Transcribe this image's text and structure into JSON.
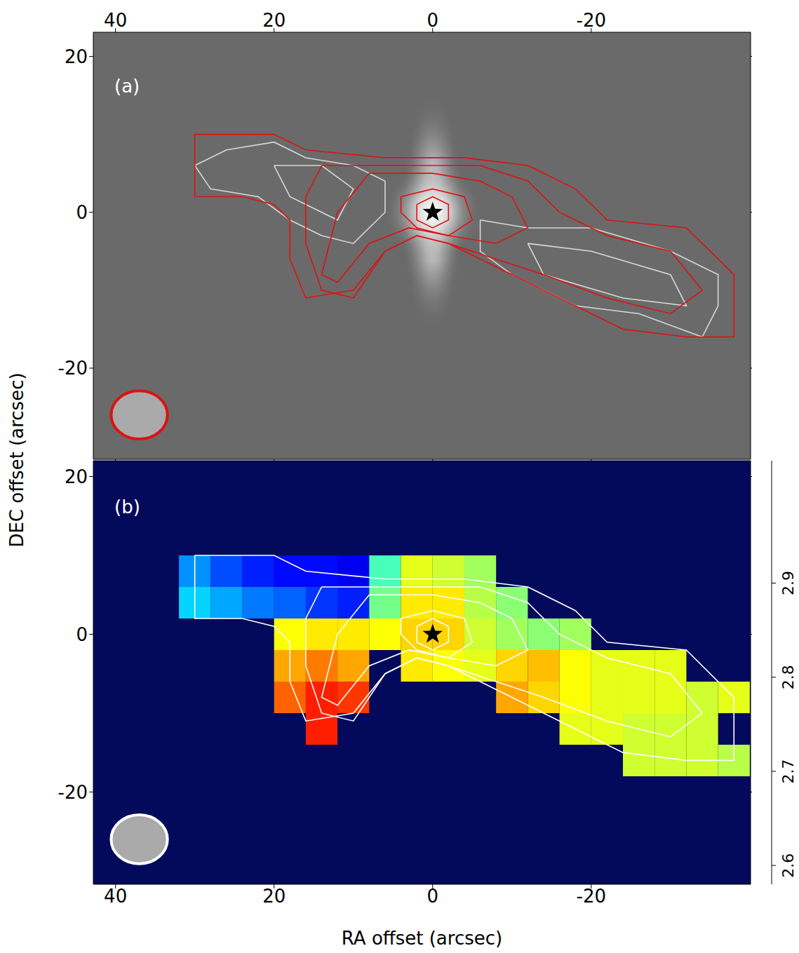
{
  "chart_data": [
    {
      "type": "contour",
      "title": "(a)",
      "ylabel": "DEC offset (arcsec)",
      "xlim": [
        42.8,
        -40.1
      ],
      "xticks": [
        40,
        20,
        0,
        -20
      ],
      "ylim": [
        -31.7,
        23.1
      ],
      "yticks": [
        -20,
        0,
        20
      ],
      "grid": false,
      "star": {
        "x": 0,
        "y": 0
      },
      "beam": {
        "x": 37,
        "y": -26,
        "width": 7.1,
        "height": 6.2,
        "color": "#e01010"
      },
      "contours": [
        {
          "color": "#d8d8d8",
          "levels": [
            [
              [
                30,
                6
              ],
              [
                26,
                8
              ],
              [
                20,
                9
              ],
              [
                16,
                7
              ],
              [
                10,
                6
              ],
              [
                6,
                4
              ],
              [
                6,
                0
              ],
              [
                10,
                -4
              ],
              [
                14,
                -3
              ],
              [
                18,
                -1
              ],
              [
                22,
                2
              ],
              [
                28,
                3
              ],
              [
                30,
                6
              ]
            ],
            [
              [
                20,
                6
              ],
              [
                14,
                6
              ],
              [
                10,
                3
              ],
              [
                12,
                -1
              ],
              [
                18,
                2
              ],
              [
                20,
                6
              ]
            ],
            [
              [
                -6,
                -1
              ],
              [
                -12,
                -2
              ],
              [
                -20,
                -2
              ],
              [
                -30,
                -5
              ],
              [
                -36,
                -8
              ],
              [
                -36,
                -12
              ],
              [
                -34,
                -16
              ],
              [
                -26,
                -13
              ],
              [
                -18,
                -12
              ],
              [
                -10,
                -8
              ],
              [
                -6,
                -5
              ],
              [
                -6,
                -1
              ]
            ],
            [
              [
                -12,
                -4
              ],
              [
                -20,
                -5
              ],
              [
                -30,
                -8
              ],
              [
                -32,
                -12
              ],
              [
                -24,
                -11
              ],
              [
                -14,
                -8
              ],
              [
                -12,
                -4
              ]
            ]
          ]
        },
        {
          "color": "#e01010",
          "levels": [
            [
              [
                30,
                10
              ],
              [
                20,
                10
              ],
              [
                16,
                8
              ],
              [
                6,
                7
              ],
              [
                -4,
                7
              ],
              [
                -12,
                6
              ],
              [
                -18,
                3
              ],
              [
                -22,
                -1
              ],
              [
                -32,
                -2
              ],
              [
                -38,
                -8
              ],
              [
                -38,
                -16
              ],
              [
                -32,
                -16
              ],
              [
                -24,
                -15
              ],
              [
                -14,
                -10
              ],
              [
                -8,
                -7
              ],
              [
                -2,
                -4
              ],
              [
                2,
                -3
              ],
              [
                6,
                -5
              ],
              [
                10,
                -10
              ],
              [
                16,
                -11
              ],
              [
                18,
                -6
              ],
              [
                18,
                -1
              ],
              [
                20,
                1
              ],
              [
                24,
                2
              ],
              [
                30,
                2
              ],
              [
                30,
                10
              ]
            ],
            [
              [
                14,
                6
              ],
              [
                4,
                6
              ],
              [
                -6,
                6
              ],
              [
                -12,
                4
              ],
              [
                -16,
                0
              ],
              [
                -22,
                -3
              ],
              [
                -30,
                -5
              ],
              [
                -34,
                -10
              ],
              [
                -30,
                -13
              ],
              [
                -22,
                -11
              ],
              [
                -14,
                -8
              ],
              [
                -8,
                -6
              ],
              [
                -2,
                -4
              ],
              [
                2,
                -3
              ],
              [
                6,
                -5
              ],
              [
                10,
                -11
              ],
              [
                14,
                -10
              ],
              [
                16,
                -4
              ],
              [
                16,
                2
              ],
              [
                14,
                6
              ]
            ],
            [
              [
                8,
                5
              ],
              [
                0,
                5
              ],
              [
                -6,
                4
              ],
              [
                -10,
                2
              ],
              [
                -12,
                -2
              ],
              [
                -8,
                -4
              ],
              [
                -2,
                -3
              ],
              [
                3,
                -2
              ],
              [
                8,
                -4
              ],
              [
                12,
                -9
              ],
              [
                14,
                -8
              ],
              [
                12,
                0
              ],
              [
                8,
                5
              ]
            ],
            [
              [
                4,
                2
              ],
              [
                0,
                3
              ],
              [
                -4,
                2
              ],
              [
                -5,
                -1
              ],
              [
                -2,
                -3
              ],
              [
                2,
                -2
              ],
              [
                4,
                0
              ],
              [
                4,
                2
              ]
            ],
            [
              [
                2,
                1
              ],
              [
                0,
                2
              ],
              [
                -2,
                1
              ],
              [
                -2,
                -1
              ],
              [
                0,
                -2
              ],
              [
                2,
                -1
              ],
              [
                2,
                1
              ]
            ]
          ]
        }
      ]
    },
    {
      "type": "heatmap",
      "title": "(b)",
      "xlabel": "RA offset (arcsec)",
      "xlim": [
        42.8,
        -40.1
      ],
      "xticks": [
        40,
        20,
        0,
        -20
      ],
      "ylim": [
        -31.7,
        22
      ],
      "yticks": [
        -20,
        0,
        20
      ],
      "grid": false,
      "star": {
        "x": 0,
        "y": 0
      },
      "beam": {
        "x": 37,
        "y": -26,
        "width": 7.1,
        "height": 6.2,
        "color": "#ffffff"
      },
      "heatmap": {
        "x": [
          30,
          26,
          22,
          18,
          14,
          10,
          6,
          2,
          -2,
          -6,
          -10,
          -14,
          -18,
          -22,
          -26,
          -30,
          -34,
          -38
        ],
        "y": [
          8,
          4,
          0,
          -4,
          -8,
          -12,
          -16
        ],
        "z": [
          [
            2.7,
            2.67,
            2.65,
            2.64,
            2.64,
            2.63,
            2.78,
            2.85,
            2.84,
            2.82,
            null,
            null,
            null,
            null,
            null,
            null,
            null,
            null
          ],
          [
            2.73,
            2.71,
            2.69,
            2.68,
            2.66,
            2.65,
            2.8,
            2.87,
            2.87,
            2.83,
            2.81,
            null,
            null,
            null,
            null,
            null,
            null,
            null
          ],
          [
            null,
            null,
            null,
            2.86,
            2.87,
            2.87,
            2.86,
            2.88,
            2.88,
            2.84,
            2.82,
            2.81,
            2.82,
            null,
            null,
            null,
            null,
            null
          ],
          [
            null,
            null,
            null,
            2.9,
            2.92,
            2.9,
            null,
            2.87,
            2.86,
            2.85,
            2.88,
            2.89,
            2.86,
            2.85,
            2.85,
            2.85,
            null,
            null
          ],
          [
            null,
            null,
            null,
            2.93,
            2.96,
            2.95,
            null,
            null,
            null,
            null,
            2.9,
            2.88,
            2.86,
            2.85,
            2.85,
            2.85,
            2.84,
            2.85
          ],
          [
            null,
            null,
            null,
            null,
            2.96,
            null,
            null,
            null,
            null,
            null,
            null,
            null,
            2.85,
            2.85,
            2.84,
            2.84,
            2.84,
            null
          ],
          [
            null,
            null,
            null,
            null,
            null,
            null,
            null,
            null,
            null,
            null,
            null,
            null,
            null,
            null,
            2.84,
            2.84,
            2.84,
            2.83
          ]
        ]
      },
      "colorbar": {
        "range": [
          2.58,
          3.03
        ],
        "ticks": [
          2.6,
          2.7,
          2.8,
          2.9
        ]
      },
      "contours": [
        {
          "color": "#ffffff",
          "levels": [
            [
              [
                30,
                10
              ],
              [
                20,
                10
              ],
              [
                16,
                8
              ],
              [
                6,
                7
              ],
              [
                -4,
                7
              ],
              [
                -12,
                6
              ],
              [
                -18,
                3
              ],
              [
                -22,
                -1
              ],
              [
                -32,
                -2
              ],
              [
                -38,
                -8
              ],
              [
                -38,
                -16
              ],
              [
                -32,
                -16
              ],
              [
                -24,
                -15
              ],
              [
                -14,
                -10
              ],
              [
                -8,
                -7
              ],
              [
                -2,
                -4
              ],
              [
                2,
                -3
              ],
              [
                6,
                -5
              ],
              [
                10,
                -10
              ],
              [
                16,
                -11
              ],
              [
                18,
                -6
              ],
              [
                18,
                -1
              ],
              [
                20,
                1
              ],
              [
                24,
                2
              ],
              [
                30,
                2
              ],
              [
                30,
                10
              ]
            ],
            [
              [
                14,
                6
              ],
              [
                4,
                6
              ],
              [
                -6,
                6
              ],
              [
                -12,
                4
              ],
              [
                -16,
                0
              ],
              [
                -22,
                -3
              ],
              [
                -30,
                -5
              ],
              [
                -34,
                -10
              ],
              [
                -30,
                -13
              ],
              [
                -22,
                -11
              ],
              [
                -14,
                -8
              ],
              [
                -8,
                -6
              ],
              [
                -2,
                -4
              ],
              [
                2,
                -3
              ],
              [
                6,
                -5
              ],
              [
                10,
                -11
              ],
              [
                14,
                -10
              ],
              [
                16,
                -4
              ],
              [
                16,
                2
              ],
              [
                14,
                6
              ]
            ],
            [
              [
                8,
                5
              ],
              [
                0,
                5
              ],
              [
                -6,
                4
              ],
              [
                -10,
                2
              ],
              [
                -12,
                -2
              ],
              [
                -8,
                -4
              ],
              [
                -2,
                -3
              ],
              [
                3,
                -2
              ],
              [
                8,
                -4
              ],
              [
                12,
                -9
              ],
              [
                14,
                -8
              ],
              [
                12,
                0
              ],
              [
                8,
                5
              ]
            ],
            [
              [
                4,
                2
              ],
              [
                0,
                3
              ],
              [
                -4,
                2
              ],
              [
                -5,
                -1
              ],
              [
                -2,
                -3
              ],
              [
                2,
                -2
              ],
              [
                4,
                0
              ],
              [
                4,
                2
              ]
            ],
            [
              [
                2,
                1
              ],
              [
                0,
                2
              ],
              [
                -2,
                1
              ],
              [
                -2,
                -1
              ],
              [
                0,
                -2
              ],
              [
                2,
                -1
              ],
              [
                2,
                1
              ]
            ]
          ]
        }
      ]
    }
  ]
}
